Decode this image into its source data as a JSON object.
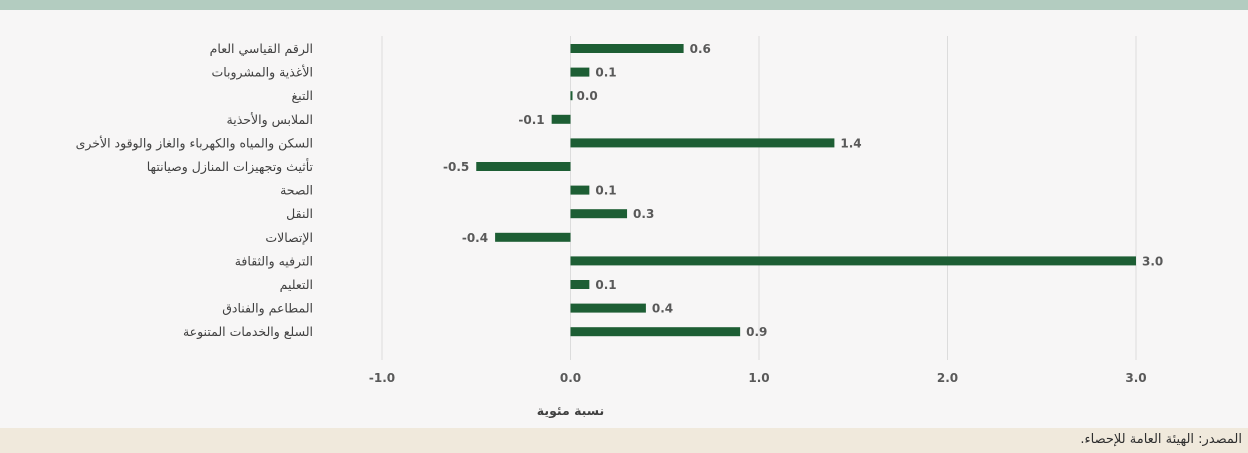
{
  "colors": {
    "bar": "#1d5e34",
    "grid": "#dcdcdc",
    "header_band": "#b3ccc0",
    "footer_band": "#f0e9dc"
  },
  "source_text": "المصدر: الهيئة العامة للإحصاء.",
  "chart_data": {
    "type": "bar",
    "orientation": "horizontal",
    "categories": [
      "الرقم القياسي العام",
      "الأغذية والمشروبات",
      "التبغ",
      "الملابس والأحذية",
      "السكن والمياه والكهرباء والغاز والوقود الأخرى",
      "تأثيث وتجهيزات المنازل وصيانتها",
      "الصحة",
      "النقل",
      "الإتصالات",
      "الترفيه والثقافة",
      "التعليم",
      "المطاعم والفنادق",
      "السلع والخدمات المتنوعة"
    ],
    "values": [
      0.6,
      0.1,
      0.0,
      -0.1,
      1.4,
      -0.5,
      0.1,
      0.3,
      -0.4,
      3.0,
      0.1,
      0.4,
      0.9
    ],
    "value_labels": [
      "0.6",
      "0.1",
      "0.0",
      "-0.1",
      "1.4",
      "-0.5",
      "0.1",
      "0.3",
      "-0.4",
      "3.0",
      "0.1",
      "0.4",
      "0.9"
    ],
    "xlim": [
      -1.0,
      3.0
    ],
    "xticks": [
      -1.0,
      0.0,
      1.0,
      2.0,
      3.0
    ],
    "xtick_labels": [
      "-1.0",
      "0.0",
      "1.0",
      "2.0",
      "3.0"
    ],
    "xlabel": "نسبة مئوية",
    "grid": "vertical",
    "legend": "none"
  }
}
